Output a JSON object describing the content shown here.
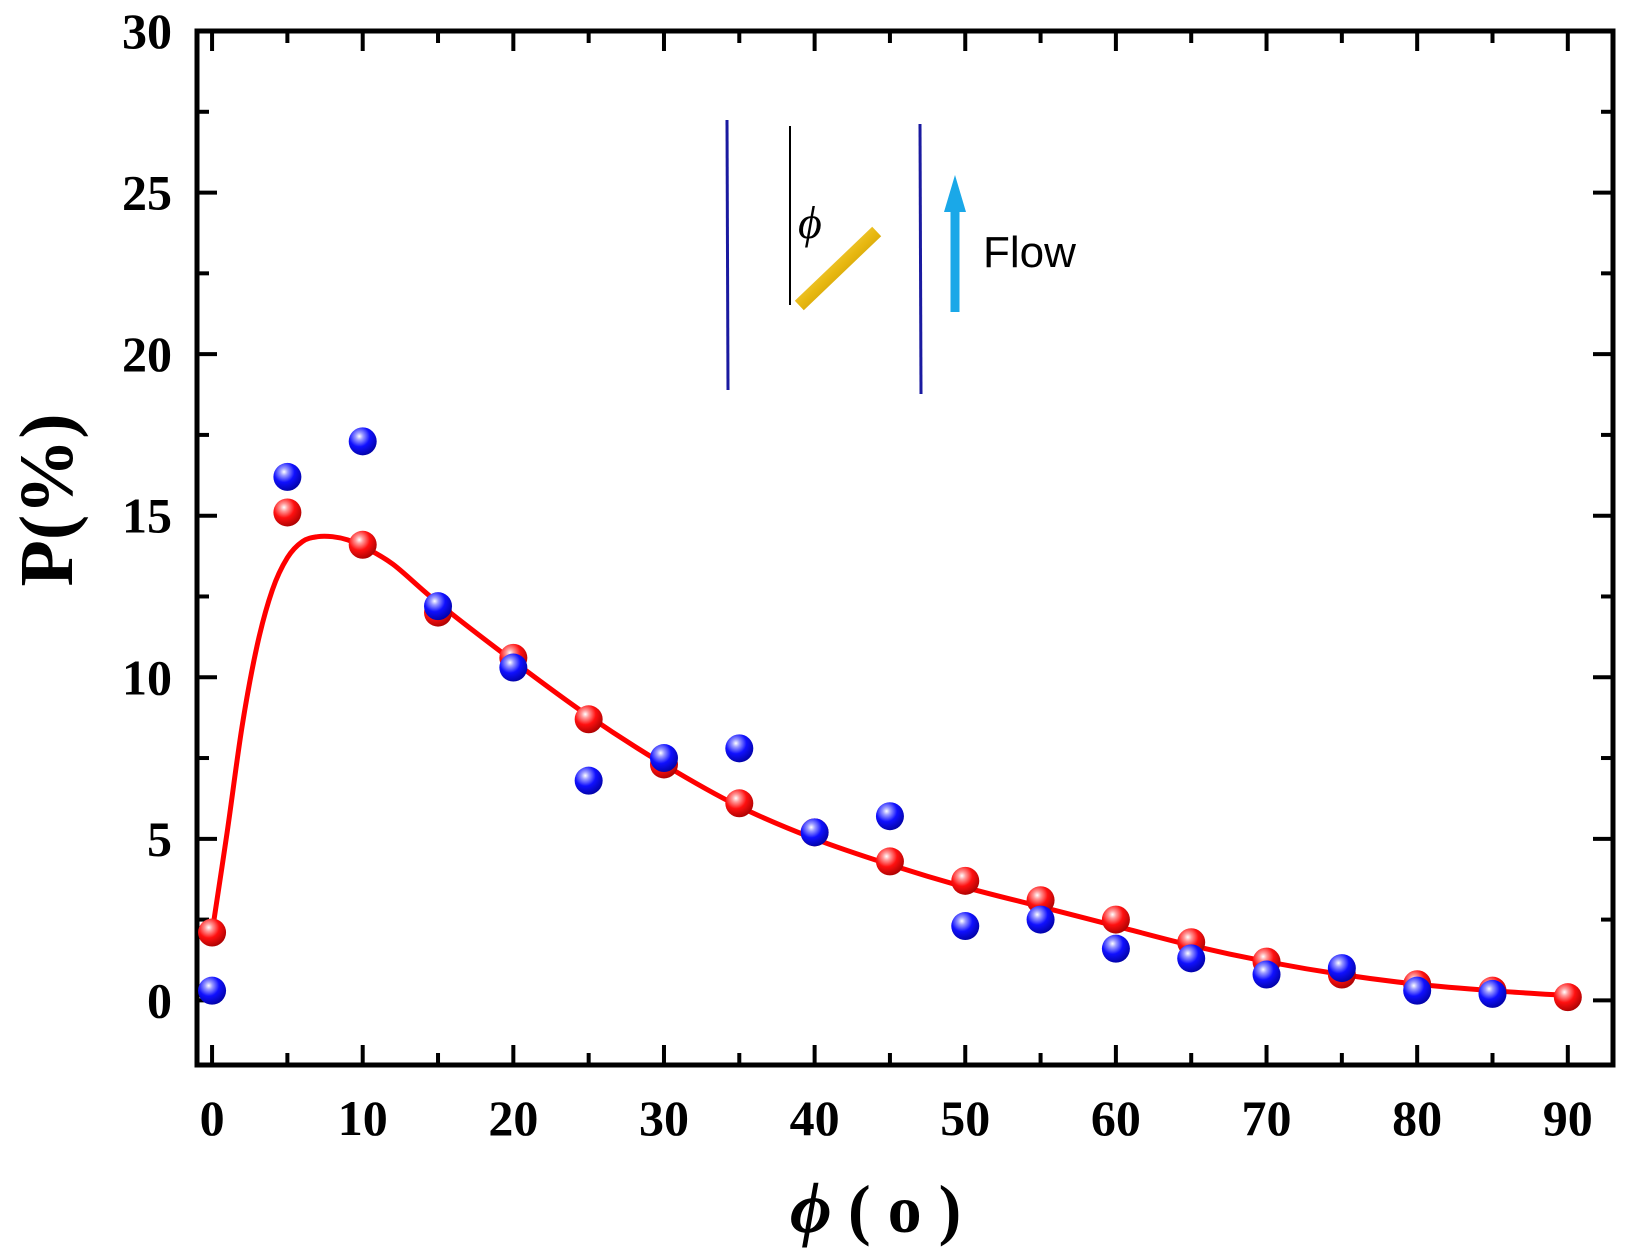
{
  "chart_data": {
    "type": "scatter",
    "title": "",
    "xlabel": "ϕ ( o )",
    "xlabel_symbol": "ϕ",
    "xlabel_unit": "( o )",
    "ylabel": "P(%)",
    "xlim": [
      -1,
      93
    ],
    "ylim": [
      -2,
      30
    ],
    "x_ticks": [
      0,
      10,
      20,
      30,
      40,
      50,
      60,
      70,
      80,
      90
    ],
    "y_ticks": [
      0,
      5,
      10,
      15,
      20,
      25,
      30
    ],
    "grid": false,
    "series": [
      {
        "name": "red",
        "color": "#ff0000",
        "x": [
          0,
          5,
          10,
          15,
          20,
          25,
          30,
          35,
          40,
          45,
          50,
          55,
          60,
          65,
          70,
          75,
          80,
          85,
          90
        ],
        "y": [
          2.1,
          15.1,
          14.1,
          12.0,
          10.6,
          8.7,
          7.3,
          6.1,
          5.2,
          4.3,
          3.7,
          3.1,
          2.5,
          1.8,
          1.2,
          0.8,
          0.5,
          0.3,
          0.1
        ]
      },
      {
        "name": "blue",
        "color": "#0000ee",
        "x": [
          0,
          5,
          10,
          15,
          20,
          25,
          30,
          35,
          40,
          45,
          50,
          55,
          60,
          65,
          70,
          75,
          80,
          85
        ],
        "y": [
          0.3,
          16.2,
          17.3,
          12.2,
          10.3,
          6.8,
          7.5,
          7.8,
          5.2,
          5.7,
          2.3,
          2.5,
          1.6,
          1.3,
          0.8,
          1.0,
          0.3,
          0.2
        ]
      }
    ],
    "fit_curve": {
      "color": "#ff0000",
      "x": [
        0,
        1,
        2,
        3,
        4,
        5,
        6,
        7,
        8,
        9,
        10,
        12,
        15,
        20,
        25,
        30,
        35,
        40,
        45,
        50,
        55,
        60,
        65,
        70,
        75,
        80,
        85,
        90
      ],
      "y": [
        2.1,
        5.2,
        8.5,
        11.0,
        12.7,
        13.7,
        14.2,
        14.35,
        14.35,
        14.25,
        14.05,
        13.5,
        12.3,
        10.5,
        8.8,
        7.3,
        6.0,
        5.0,
        4.2,
        3.5,
        2.9,
        2.3,
        1.7,
        1.2,
        0.8,
        0.5,
        0.3,
        0.15
      ]
    },
    "inset": {
      "phi_label": "ϕ",
      "flow_label": "Flow"
    },
    "colors": {
      "axis": "#000000",
      "red_marker": "#ff0000",
      "blue_marker": "#0000ee",
      "fit_line": "#ff0000",
      "channel_wall": "#1a1aa0",
      "rod": "#e8c020",
      "flow_arrow": "#1aa8e8"
    }
  }
}
